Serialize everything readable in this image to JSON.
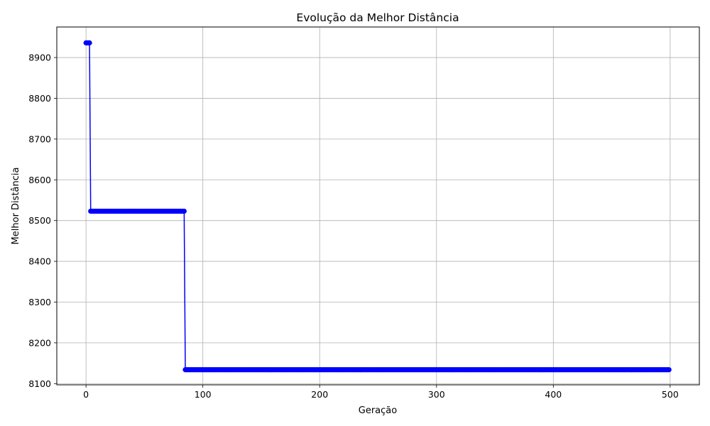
{
  "chart_data": {
    "type": "line",
    "title": "Evolução da Melhor Distância",
    "xlabel": "Geração",
    "ylabel": "Melhor Distância",
    "xlim": [
      -25,
      525
    ],
    "ylim": [
      8097,
      8975
    ],
    "x_ticks": [
      0,
      100,
      200,
      300,
      400,
      500
    ],
    "y_ticks": [
      8100,
      8200,
      8300,
      8400,
      8500,
      8600,
      8700,
      8800,
      8900
    ],
    "grid": true,
    "line_color": "#0000ff",
    "marker": "circle",
    "series": [
      {
        "segments": [
          {
            "from": 0,
            "to": 3,
            "value": 8936
          },
          {
            "from": 4,
            "to": 84,
            "value": 8523
          },
          {
            "from": 85,
            "to": 499,
            "value": 8134
          }
        ]
      }
    ]
  }
}
